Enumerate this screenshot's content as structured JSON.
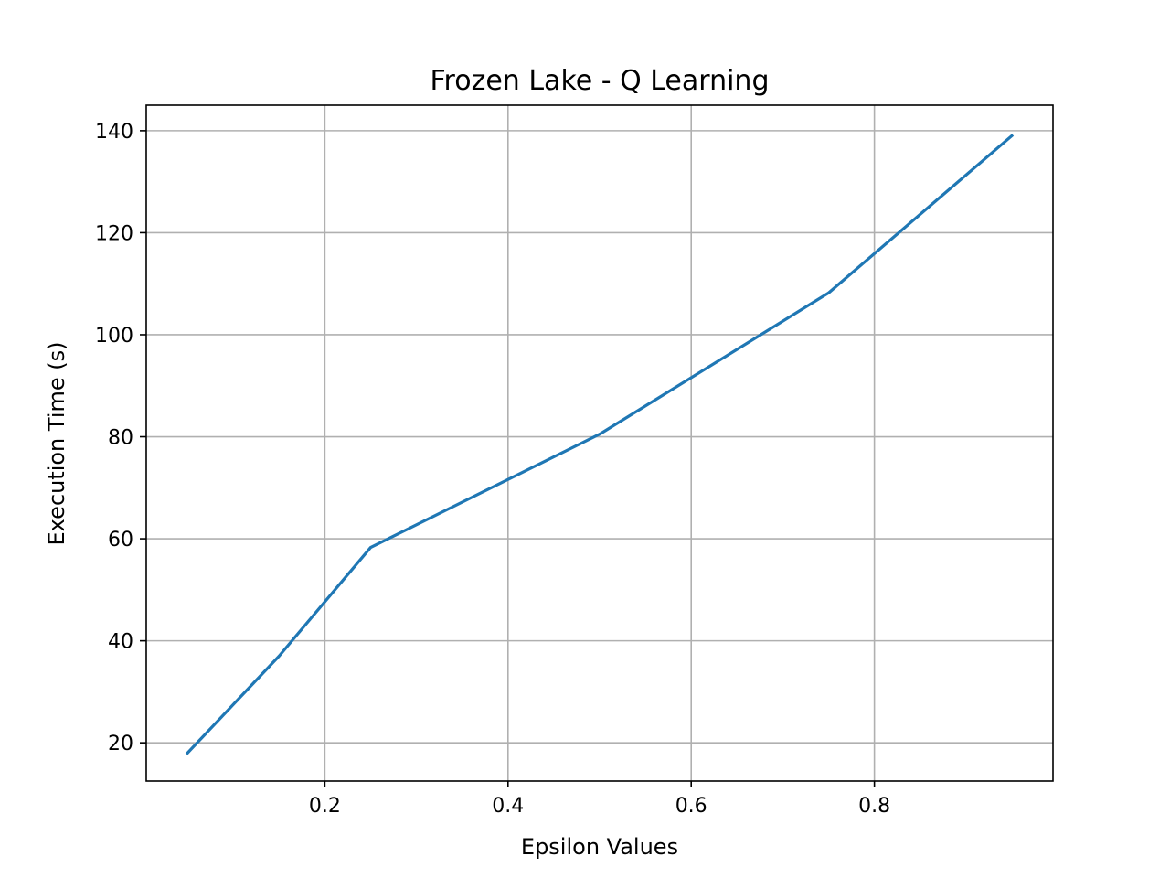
{
  "chart_data": {
    "type": "line",
    "title": "Frozen Lake - Q Learning",
    "xlabel": "Epsilon Values",
    "ylabel": "Execution Time (s)",
    "xlim": [
      0.005,
      0.995
    ],
    "ylim": [
      12.5,
      145
    ],
    "xticks": [
      0.2,
      0.4,
      0.6,
      0.8
    ],
    "xtick_labels": [
      "0.2",
      "0.4",
      "0.6",
      "0.8"
    ],
    "yticks": [
      20,
      40,
      60,
      80,
      100,
      120,
      140
    ],
    "ytick_labels": [
      "20",
      "40",
      "60",
      "80",
      "100",
      "120",
      "140"
    ],
    "grid": true,
    "series": [
      {
        "color": "#1f77b4",
        "x": [
          0.05,
          0.15,
          0.25,
          0.5,
          0.75,
          0.95
        ],
        "values": [
          18,
          37,
          58.3,
          80.5,
          108.2,
          139
        ]
      }
    ]
  }
}
